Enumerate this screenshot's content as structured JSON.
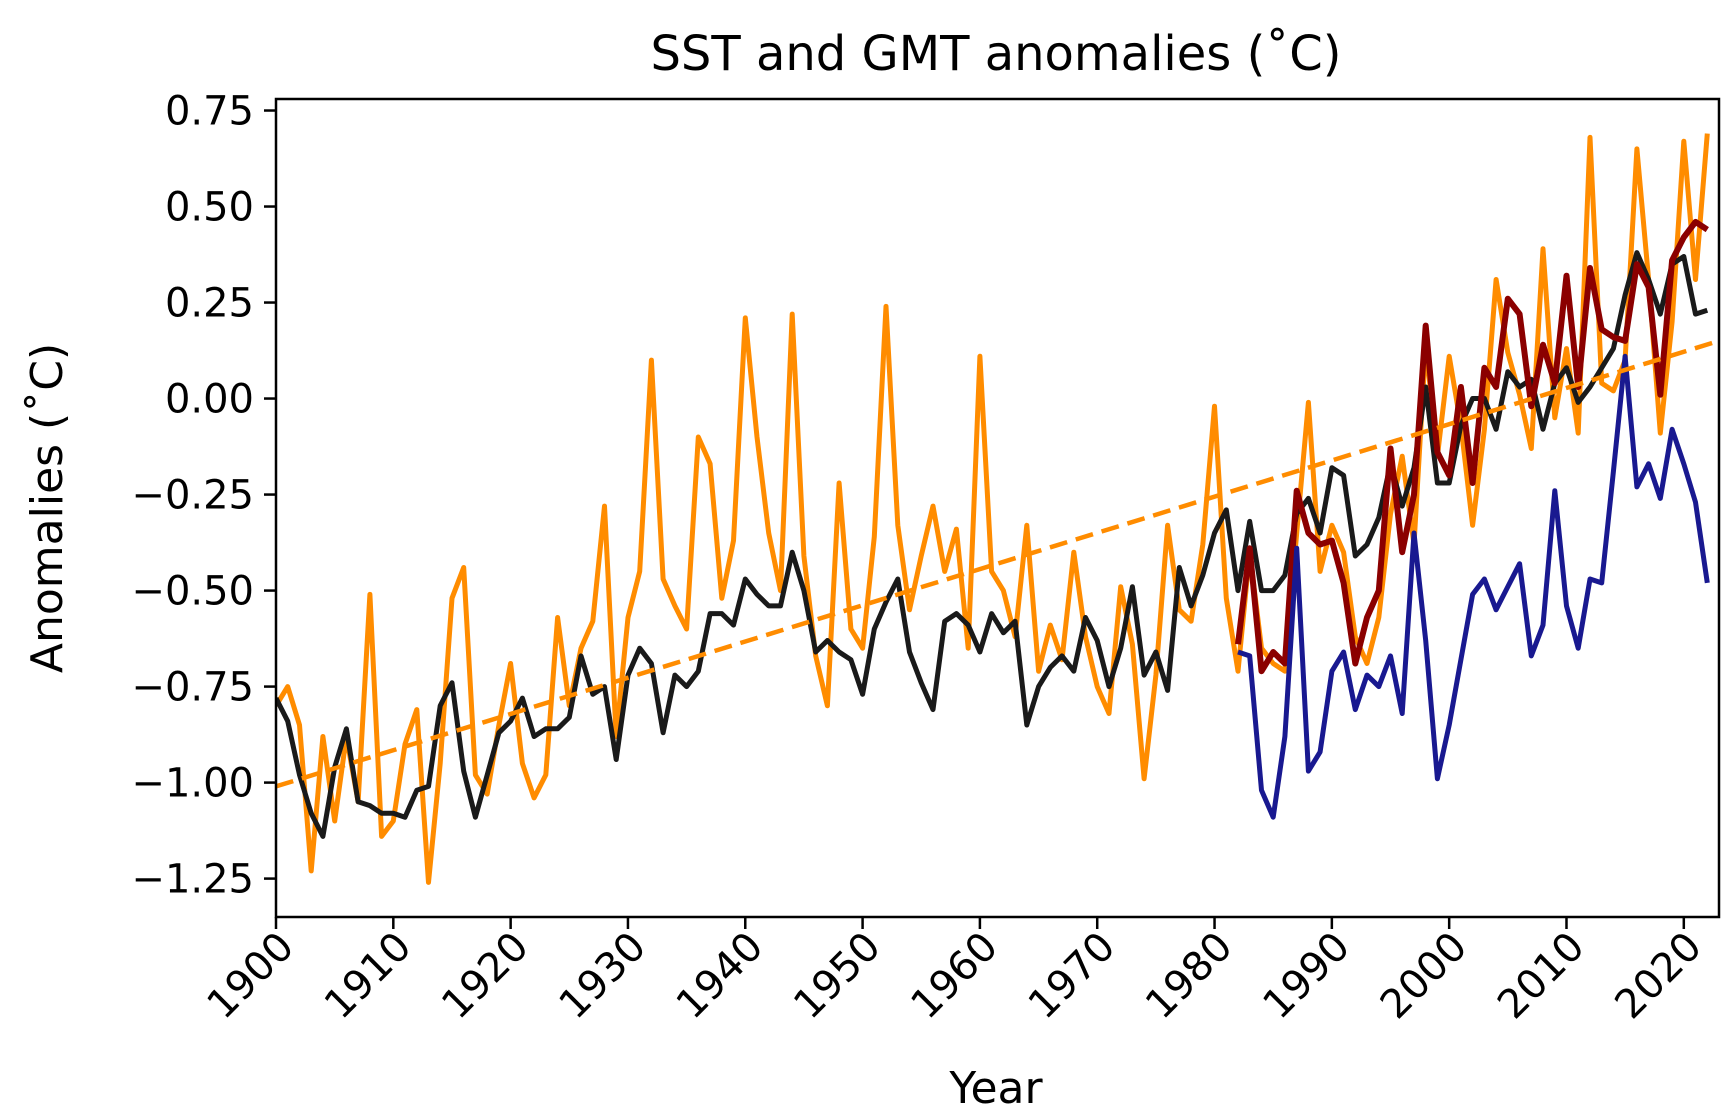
{
  "chart_data": {
    "type": "line",
    "title": "SST and GMT anomalies (˚C)",
    "xlabel": "Year",
    "ylabel": "Anomalies (˚C)",
    "xlim": [
      1900,
      2023
    ],
    "ylim": [
      -1.35,
      0.78
    ],
    "xticks": [
      1900,
      1910,
      1920,
      1930,
      1940,
      1950,
      1960,
      1970,
      1980,
      1990,
      2000,
      2010,
      2020
    ],
    "yticks": [
      0.75,
      0.5,
      0.25,
      0.0,
      -0.25,
      -0.5,
      -0.75,
      -1.0,
      -1.25
    ],
    "ytick_labels": [
      "0.75",
      "0.50",
      "0.25",
      "0.00",
      "−0.25",
      "−0.50",
      "−0.75",
      "−1.00",
      "−1.25"
    ],
    "grid": false,
    "legend": "none",
    "series": [
      {
        "color": "#ff8c00",
        "style": "solid",
        "x": [
          1900,
          1901,
          1902,
          1903,
          1904,
          1905,
          1906,
          1907,
          1908,
          1909,
          1910,
          1911,
          1912,
          1913,
          1914,
          1915,
          1916,
          1917,
          1918,
          1919,
          1920,
          1921,
          1922,
          1923,
          1924,
          1925,
          1926,
          1927,
          1928,
          1929,
          1930,
          1931,
          1932,
          1933,
          1934,
          1935,
          1936,
          1937,
          1938,
          1939,
          1940,
          1941,
          1942,
          1943,
          1944,
          1945,
          1946,
          1947,
          1948,
          1949,
          1950,
          1951,
          1952,
          1953,
          1954,
          1955,
          1956,
          1957,
          1958,
          1959,
          1960,
          1961,
          1962,
          1963,
          1964,
          1965,
          1966,
          1967,
          1968,
          1969,
          1970,
          1971,
          1972,
          1973,
          1974,
          1975,
          1976,
          1977,
          1978,
          1979,
          1980,
          1981,
          1982,
          1983,
          1984,
          1985,
          1986,
          1987,
          1988,
          1989,
          1990,
          1991,
          1992,
          1993,
          1994,
          1995,
          1996,
          1997,
          1998,
          1999,
          2000,
          2001,
          2002,
          2003,
          2004,
          2005,
          2006,
          2007,
          2008,
          2009,
          2010,
          2011,
          2012,
          2013,
          2014,
          2015,
          2016,
          2017,
          2018,
          2019,
          2020,
          2021,
          2022
        ],
        "values": [
          -0.8,
          -0.75,
          -0.85,
          -1.23,
          -0.88,
          -1.1,
          -0.88,
          -1.05,
          -0.51,
          -1.14,
          -1.1,
          -0.9,
          -0.81,
          -1.26,
          -0.95,
          -0.52,
          -0.44,
          -0.98,
          -1.03,
          -0.85,
          -0.69,
          -0.95,
          -1.04,
          -0.98,
          -0.57,
          -0.8,
          -0.65,
          -0.58,
          -0.28,
          -0.88,
          -0.57,
          -0.45,
          0.1,
          -0.47,
          -0.54,
          -0.6,
          -0.1,
          -0.17,
          -0.52,
          -0.37,
          0.21,
          -0.1,
          -0.35,
          -0.5,
          0.22,
          -0.41,
          -0.67,
          -0.8,
          -0.22,
          -0.6,
          -0.65,
          -0.36,
          0.24,
          -0.33,
          -0.55,
          -0.41,
          -0.28,
          -0.45,
          -0.34,
          -0.65,
          0.11,
          -0.45,
          -0.5,
          -0.62,
          -0.33,
          -0.71,
          -0.59,
          -0.68,
          -0.4,
          -0.62,
          -0.75,
          -0.82,
          -0.49,
          -0.64,
          -0.99,
          -0.72,
          -0.33,
          -0.55,
          -0.58,
          -0.38,
          -0.02,
          -0.52,
          -0.71,
          -0.4,
          -0.65,
          -0.69,
          -0.71,
          -0.35,
          -0.01,
          -0.45,
          -0.33,
          -0.4,
          -0.62,
          -0.69,
          -0.57,
          -0.3,
          -0.15,
          -0.38,
          0.14,
          -0.15,
          0.11,
          -0.07,
          -0.33,
          -0.08,
          0.31,
          0.12,
          0.01,
          -0.13,
          0.39,
          -0.05,
          0.13,
          -0.09,
          0.68,
          0.04,
          0.02,
          0.1,
          0.65,
          0.31,
          -0.09,
          0.2,
          0.67,
          0.31,
          0.69
        ]
      },
      {
        "color": "#1a1a1a",
        "style": "solid",
        "x": [
          1900,
          1901,
          1902,
          1903,
          1904,
          1905,
          1906,
          1907,
          1908,
          1909,
          1910,
          1911,
          1912,
          1913,
          1914,
          1915,
          1916,
          1917,
          1918,
          1919,
          1920,
          1921,
          1922,
          1923,
          1924,
          1925,
          1926,
          1927,
          1928,
          1929,
          1930,
          1931,
          1932,
          1933,
          1934,
          1935,
          1936,
          1937,
          1938,
          1939,
          1940,
          1941,
          1942,
          1943,
          1944,
          1945,
          1946,
          1947,
          1948,
          1949,
          1950,
          1951,
          1952,
          1953,
          1954,
          1955,
          1956,
          1957,
          1958,
          1959,
          1960,
          1961,
          1962,
          1963,
          1964,
          1965,
          1966,
          1967,
          1968,
          1969,
          1970,
          1971,
          1972,
          1973,
          1974,
          1975,
          1976,
          1977,
          1978,
          1979,
          1980,
          1981,
          1982,
          1983,
          1984,
          1985,
          1986,
          1987,
          1988,
          1989,
          1990,
          1991,
          1992,
          1993,
          1994,
          1995,
          1996,
          1997,
          1998,
          1999,
          2000,
          2001,
          2002,
          2003,
          2004,
          2005,
          2006,
          2007,
          2008,
          2009,
          2010,
          2011,
          2012,
          2013,
          2014,
          2015,
          2016,
          2017,
          2018,
          2019,
          2020,
          2021,
          2022
        ],
        "values": [
          -0.78,
          -0.84,
          -0.98,
          -1.08,
          -1.14,
          -0.96,
          -0.86,
          -1.05,
          -1.06,
          -1.08,
          -1.08,
          -1.09,
          -1.02,
          -1.01,
          -0.8,
          -0.74,
          -0.97,
          -1.09,
          -0.98,
          -0.87,
          -0.84,
          -0.78,
          -0.88,
          -0.86,
          -0.86,
          -0.83,
          -0.67,
          -0.77,
          -0.75,
          -0.94,
          -0.72,
          -0.65,
          -0.69,
          -0.87,
          -0.72,
          -0.75,
          -0.71,
          -0.56,
          -0.56,
          -0.59,
          -0.47,
          -0.51,
          -0.54,
          -0.54,
          -0.4,
          -0.5,
          -0.66,
          -0.63,
          -0.66,
          -0.68,
          -0.77,
          -0.6,
          -0.53,
          -0.47,
          -0.66,
          -0.74,
          -0.81,
          -0.58,
          -0.56,
          -0.59,
          -0.66,
          -0.56,
          -0.61,
          -0.58,
          -0.85,
          -0.75,
          -0.7,
          -0.67,
          -0.71,
          -0.57,
          -0.63,
          -0.75,
          -0.65,
          -0.49,
          -0.72,
          -0.66,
          -0.76,
          -0.44,
          -0.54,
          -0.46,
          -0.35,
          -0.29,
          -0.5,
          -0.32,
          -0.5,
          -0.5,
          -0.46,
          -0.3,
          -0.26,
          -0.35,
          -0.18,
          -0.2,
          -0.41,
          -0.38,
          -0.31,
          -0.17,
          -0.28,
          -0.18,
          0.03,
          -0.22,
          -0.22,
          -0.07,
          0.0,
          0.0,
          -0.08,
          0.07,
          0.03,
          0.05,
          -0.08,
          0.04,
          0.08,
          -0.01,
          0.03,
          0.08,
          0.13,
          0.27,
          0.38,
          0.31,
          0.22,
          0.35,
          0.37,
          0.22,
          0.23
        ]
      },
      {
        "color": "#8b0000",
        "style": "solid",
        "x": [
          1982,
          1983,
          1984,
          1985,
          1986,
          1987,
          1988,
          1989,
          1990,
          1991,
          1992,
          1993,
          1994,
          1995,
          1996,
          1997,
          1998,
          1999,
          2000,
          2001,
          2002,
          2003,
          2004,
          2005,
          2006,
          2007,
          2008,
          2009,
          2010,
          2011,
          2012,
          2013,
          2014,
          2015,
          2016,
          2017,
          2018,
          2019,
          2020,
          2021,
          2022
        ],
        "values": [
          -0.64,
          -0.39,
          -0.71,
          -0.66,
          -0.69,
          -0.24,
          -0.35,
          -0.38,
          -0.37,
          -0.48,
          -0.69,
          -0.57,
          -0.5,
          -0.13,
          -0.4,
          -0.25,
          0.19,
          -0.14,
          -0.2,
          0.03,
          -0.22,
          0.08,
          0.03,
          0.26,
          0.22,
          -0.02,
          0.14,
          0.04,
          0.32,
          0.03,
          0.34,
          0.18,
          0.16,
          0.15,
          0.35,
          0.29,
          0.01,
          0.36,
          0.42,
          0.46,
          0.44
        ]
      },
      {
        "color": "#191990",
        "style": "solid",
        "x": [
          1982,
          1983,
          1984,
          1985,
          1986,
          1987,
          1988,
          1989,
          1990,
          1991,
          1992,
          1993,
          1994,
          1995,
          1996,
          1997,
          1998,
          1999,
          2000,
          2001,
          2002,
          2003,
          2004,
          2005,
          2006,
          2007,
          2008,
          2009,
          2010,
          2011,
          2012,
          2013,
          2014,
          2015,
          2016,
          2017,
          2018,
          2019,
          2020,
          2021,
          2022
        ],
        "values": [
          -0.66,
          -0.67,
          -1.02,
          -1.09,
          -0.88,
          -0.39,
          -0.97,
          -0.92,
          -0.71,
          -0.66,
          -0.81,
          -0.72,
          -0.75,
          -0.67,
          -0.82,
          -0.35,
          -0.63,
          -0.99,
          -0.85,
          -0.68,
          -0.51,
          -0.47,
          -0.55,
          -0.49,
          -0.43,
          -0.67,
          -0.59,
          -0.24,
          -0.54,
          -0.65,
          -0.47,
          -0.48,
          -0.19,
          0.11,
          -0.23,
          -0.17,
          -0.26,
          -0.08,
          -0.17,
          -0.27,
          -0.48
        ]
      },
      {
        "color": "#ff8c00",
        "style": "dashed",
        "x": [
          1900,
          2023
        ],
        "values": [
          -1.01,
          0.15
        ]
      }
    ]
  }
}
